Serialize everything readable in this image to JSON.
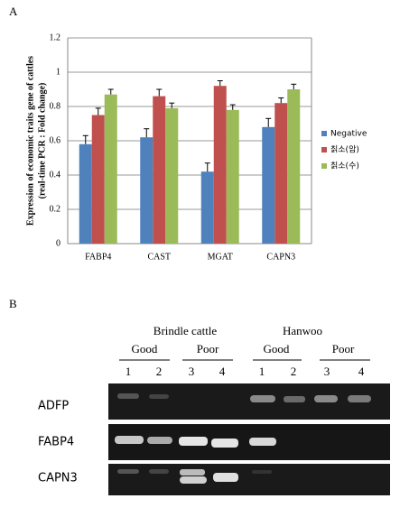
{
  "chart_data": {
    "type": "bar",
    "panel_label": "A",
    "y_label": [
      "Expression of economic traits gene of cattles",
      "(real-time PCR : Fold change)"
    ],
    "categories": [
      "FABP4",
      "CAST",
      "MGAT",
      "CAPN3"
    ],
    "series": [
      {
        "name": "Negative",
        "color": "#4f81bd",
        "values": [
          0.58,
          0.62,
          0.42,
          0.68
        ],
        "errors": [
          0.05,
          0.05,
          0.05,
          0.05
        ]
      },
      {
        "name": "칡소(암)",
        "color": "#c0504d",
        "values": [
          0.75,
          0.86,
          0.92,
          0.82
        ],
        "errors": [
          0.04,
          0.04,
          0.03,
          0.03
        ]
      },
      {
        "name": "칡소(수)",
        "color": "#9bbb59",
        "values": [
          0.87,
          0.79,
          0.78,
          0.9
        ],
        "errors": [
          0.03,
          0.03,
          0.03,
          0.03
        ]
      }
    ],
    "ylim": [
      0,
      1.2
    ],
    "yticks": [
      0,
      0.2,
      0.4,
      0.6,
      0.8,
      1,
      1.2
    ],
    "grid": true,
    "legend": "right"
  },
  "gel": {
    "panel_label": "B",
    "groups": [
      {
        "label": "Brindle cattle",
        "conditions": [
          {
            "label": "Good",
            "lanes": [
              "1",
              "2"
            ]
          },
          {
            "label": "Poor",
            "lanes": [
              "3",
              "4"
            ]
          }
        ]
      },
      {
        "label": "Hanwoo",
        "conditions": [
          {
            "label": "Good",
            "lanes": [
              "1",
              "2"
            ]
          },
          {
            "label": "Poor",
            "lanes": [
              "3",
              "4"
            ]
          }
        ]
      }
    ],
    "rows": [
      "ADFP",
      "FABP4",
      "CAPN3"
    ]
  }
}
